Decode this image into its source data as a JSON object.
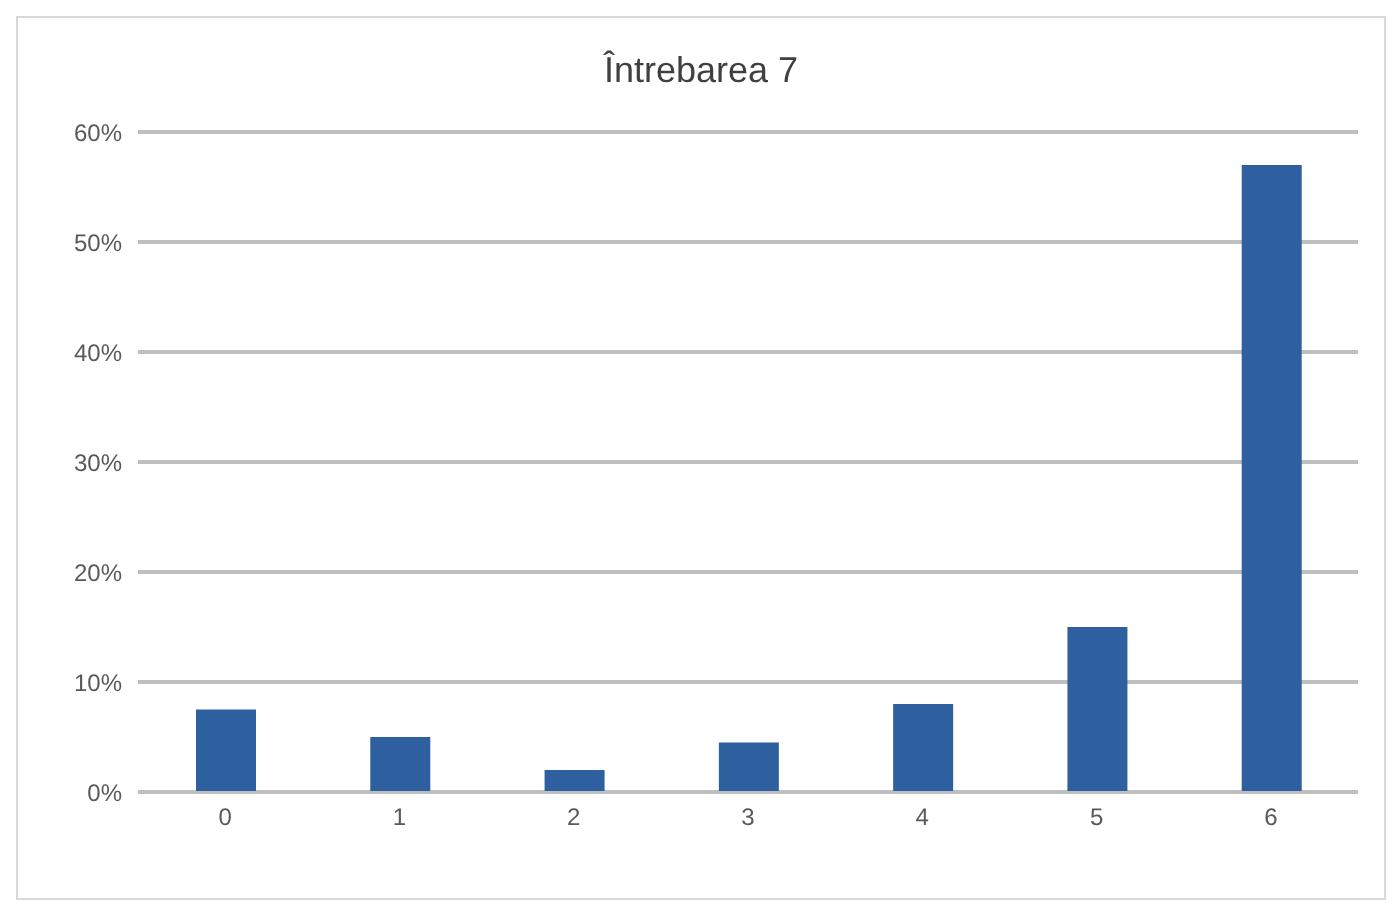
{
  "chart_data": {
    "type": "bar",
    "title": "Întrebarea 7",
    "categories": [
      "0",
      "1",
      "2",
      "3",
      "4",
      "5",
      "6"
    ],
    "values": [
      0.075,
      0.05,
      0.02,
      0.045,
      0.08,
      0.15,
      0.57
    ],
    "color": "#2e5f9e",
    "ylim": [
      0,
      0.6
    ],
    "yticks": [
      {
        "value": 0,
        "label": "0%"
      },
      {
        "value": 0.1,
        "label": "10%"
      },
      {
        "value": 0.2,
        "label": "20%"
      },
      {
        "value": 0.3,
        "label": "30%"
      },
      {
        "value": 0.4,
        "label": "40%"
      },
      {
        "value": 0.5,
        "label": "50%"
      },
      {
        "value": 0.6,
        "label": "60%"
      }
    ],
    "grid": "y"
  }
}
